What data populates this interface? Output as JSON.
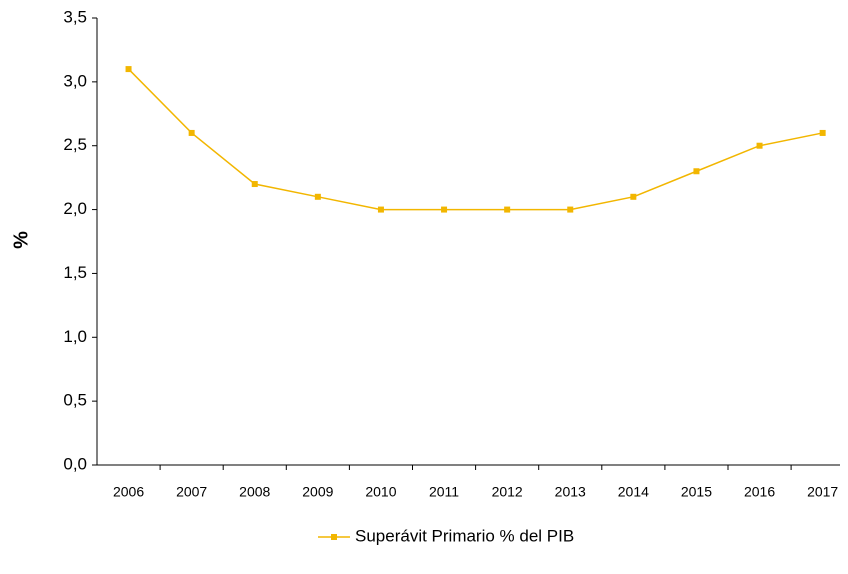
{
  "chart_data": {
    "type": "line",
    "ylabel": "%",
    "categories": [
      "2006",
      "2007",
      "2008",
      "2009",
      "2010",
      "2011",
      "2012",
      "2013",
      "2014",
      "2015",
      "2016",
      "2017"
    ],
    "series": [
      {
        "name": "Superávit Primario % del PIB",
        "color": "#f2b600",
        "values": [
          3.1,
          2.6,
          2.2,
          2.1,
          2.0,
          2.0,
          2.0,
          2.0,
          2.1,
          2.3,
          2.5,
          2.6
        ]
      }
    ],
    "ylim": [
      0,
      3.5
    ],
    "yticks": [
      {
        "value": 0,
        "label": "0,0"
      },
      {
        "value": 0.5,
        "label": "0,5"
      },
      {
        "value": 1,
        "label": "1,0"
      },
      {
        "value": 1.5,
        "label": "1,5"
      },
      {
        "value": 2,
        "label": "2,0"
      },
      {
        "value": 2.5,
        "label": "2,5"
      },
      {
        "value": 3,
        "label": "3,0"
      },
      {
        "value": 3.5,
        "label": "3,5"
      }
    ],
    "legend": "bottom"
  }
}
